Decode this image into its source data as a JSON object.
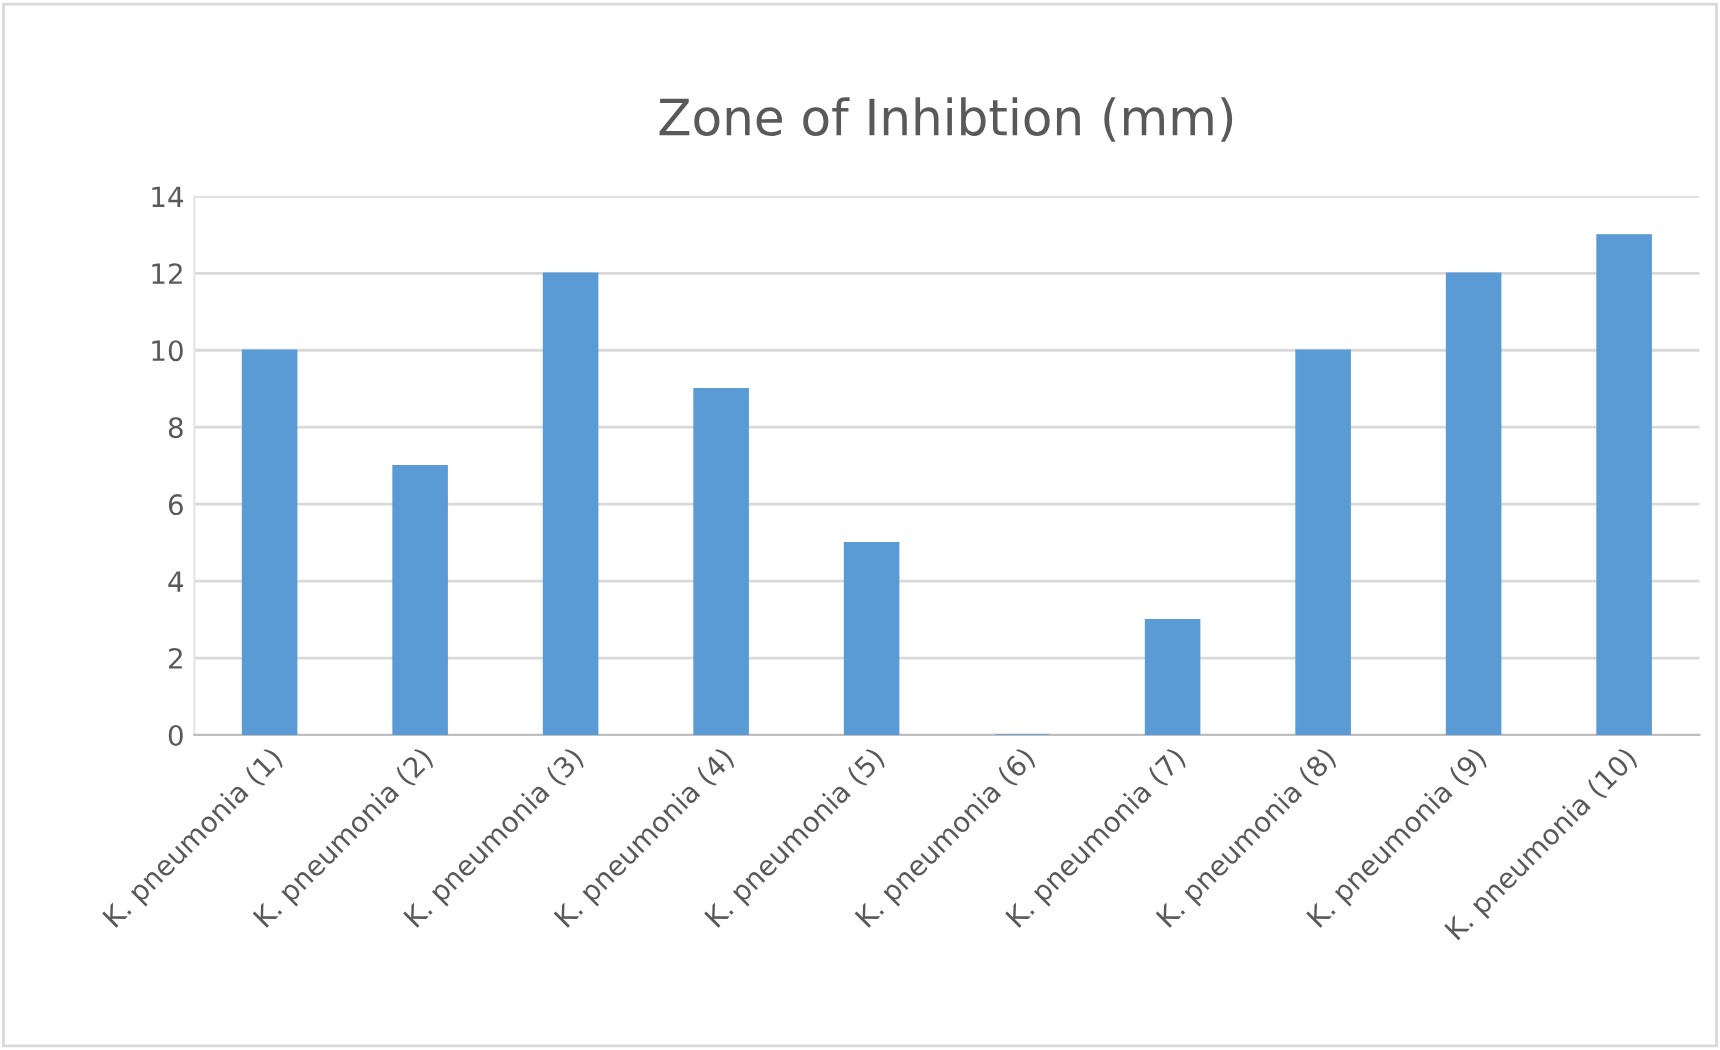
{
  "chart_data": {
    "type": "bar",
    "title": "Zone of Inhibtion (mm)",
    "categories": [
      "K. pneumonia (1)",
      "K. pneumonia (2)",
      "K. pneumonia (3)",
      "K. pneumonia (4)",
      "K. pneumonia (5)",
      "K. pneumonia (6)",
      "K. pneumonia (7)",
      "K. pneumonia (8)",
      "K. pneumonia (9)",
      "K. pneumonia (10)"
    ],
    "values": [
      10,
      7,
      12,
      9,
      5,
      0,
      3,
      10,
      12,
      13
    ],
    "color": "#5b9bd5",
    "ylim": [
      0,
      14
    ],
    "yticks": [
      0,
      2,
      4,
      6,
      8,
      10,
      12,
      14
    ],
    "grid": "y",
    "legend": false
  }
}
